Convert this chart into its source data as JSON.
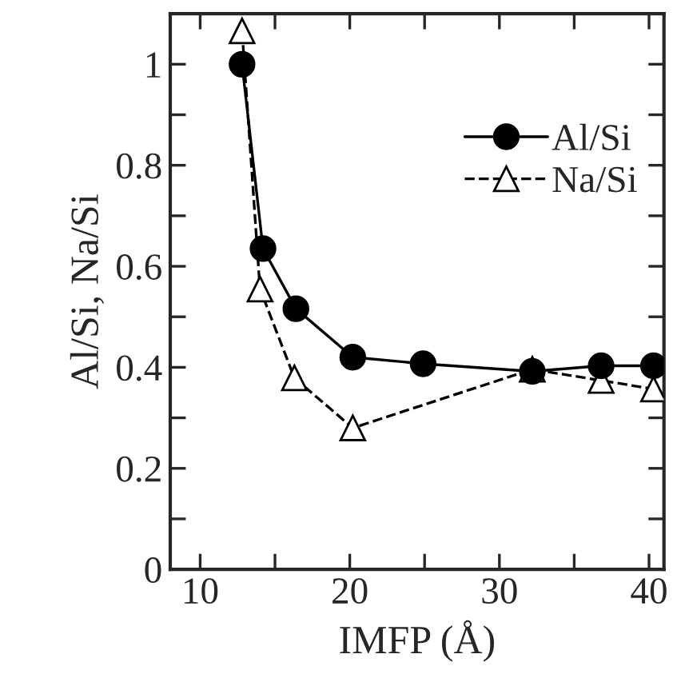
{
  "chart_data": {
    "type": "line",
    "xlabel": "IMFP (Å)",
    "ylabel": "Al/Si, Na/Si",
    "xlim": [
      8,
      41
    ],
    "ylim": [
      0,
      1.1
    ],
    "xticks": [
      10,
      {
        "value": 15,
        "label": null
      },
      20,
      {
        "value": 25,
        "label": null
      },
      30,
      {
        "value": 35,
        "label": null
      },
      40
    ],
    "yticks": [
      0,
      {
        "value": 0.1,
        "label": null
      },
      0.2,
      {
        "value": 0.3,
        "label": null
      },
      0.4,
      {
        "value": 0.5,
        "label": null
      },
      0.6,
      {
        "value": 0.7,
        "label": null
      },
      0.8,
      {
        "value": 0.9,
        "label": null
      },
      1
    ],
    "grid": false,
    "legend": "top right",
    "series": [
      {
        "name": "Al/Si",
        "color": "#000000",
        "marker": "circle",
        "line_style": "solid",
        "x": [
          12.8,
          14.2,
          16.4,
          20.2,
          24.9,
          32.2,
          36.8,
          40.3
        ],
        "values": [
          1.0,
          0.635,
          0.516,
          0.42,
          0.407,
          0.392,
          0.403,
          0.403
        ]
      },
      {
        "name": "Na/Si",
        "color": "#000000",
        "marker": "triangle",
        "line_style": "dashed",
        "x": [
          12.8,
          14.0,
          16.3,
          20.2,
          32.2,
          36.8,
          40.3
        ],
        "values": [
          1.066,
          0.555,
          0.379,
          0.28,
          0.396,
          0.374,
          0.357
        ]
      }
    ]
  }
}
